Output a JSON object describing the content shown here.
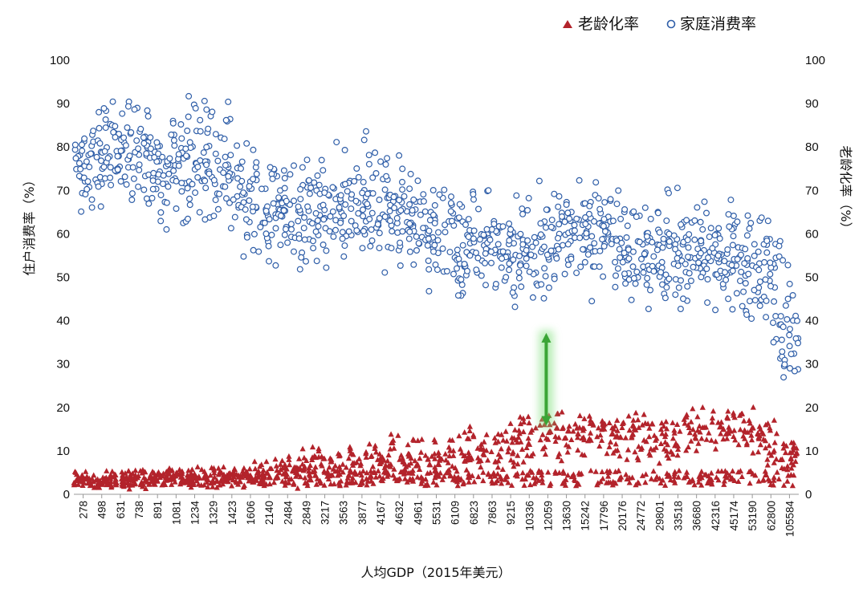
{
  "chart_data": {
    "type": "scatter",
    "title": "",
    "xlabel": "人均GDP（2015年美元）",
    "ylabel_left": "住户消费率（%）",
    "ylabel_right": "老龄化率（%）",
    "ylim": [
      0,
      100
    ],
    "yticks": [
      0,
      10,
      20,
      30,
      40,
      50,
      60,
      70,
      80,
      90,
      100
    ],
    "x_tick_labels": [
      "278",
      "498",
      "631",
      "738",
      "891",
      "1081",
      "1234",
      "1329",
      "1423",
      "1606",
      "2140",
      "2484",
      "2849",
      "3217",
      "3563",
      "3877",
      "4167",
      "4632",
      "4961",
      "5531",
      "6109",
      "6823",
      "7863",
      "9215",
      "10336",
      "12059",
      "13630",
      "15242",
      "17796",
      "20176",
      "24772",
      "29801",
      "33518",
      "36680",
      "42316",
      "45174",
      "53190",
      "62800",
      "105584"
    ],
    "legend": [
      "老龄化率",
      "家庭消费率"
    ],
    "legend_position": "top-right",
    "colors": {
      "aging": "#b3232b",
      "consumption": "#2f5ea8",
      "arrow": "#3aa535"
    },
    "series_summary": [
      {
        "name": "家庭消费率",
        "axis": "left",
        "marker": "open-circle",
        "trend_by_x_tick": [
          75,
          78,
          80,
          77,
          74,
          76,
          77,
          76,
          74,
          70,
          66,
          64,
          65,
          66,
          67,
          68,
          66,
          65,
          62,
          61,
          60,
          58,
          58,
          56,
          55,
          58,
          60,
          58,
          60,
          57,
          56,
          57,
          56,
          55,
          55,
          55,
          52,
          50,
          40
        ],
        "spread_by_x_tick": [
          10,
          12,
          13,
          13,
          13,
          13,
          14,
          15,
          15,
          15,
          14,
          14,
          13,
          13,
          13,
          13,
          13,
          12,
          12,
          13,
          13,
          13,
          13,
          13,
          13,
          13,
          12,
          12,
          12,
          12,
          12,
          13,
          13,
          13,
          12,
          12,
          13,
          16,
          18
        ]
      },
      {
        "name": "老龄化率",
        "axis": "right",
        "marker": "filled-triangle",
        "trend_by_x_tick": [
          3,
          3,
          3,
          3.5,
          3.5,
          4,
          4,
          4,
          4,
          4.5,
          5,
          5.5,
          6,
          6.5,
          7,
          7,
          7.5,
          8,
          8,
          8.5,
          9,
          10,
          10.5,
          11,
          12,
          13,
          13,
          14,
          14,
          14,
          14,
          13.5,
          13,
          14,
          15,
          16,
          15,
          12,
          10
        ],
        "spread_by_x_tick": [
          2,
          2,
          2,
          2.5,
          2.5,
          3,
          3,
          3,
          3,
          3.5,
          4,
          4.5,
          5,
          5,
          5,
          5.5,
          5.5,
          6,
          6,
          6,
          6,
          6,
          6.5,
          6.5,
          7,
          7,
          7,
          7,
          7,
          7,
          7,
          7,
          7,
          7,
          6,
          6,
          6,
          6,
          6
        ]
      }
    ],
    "annotations": [
      {
        "type": "double-arrow",
        "x_tick": "12059",
        "y_from": 16,
        "y_to": 37,
        "color": "#3aa535"
      }
    ]
  }
}
